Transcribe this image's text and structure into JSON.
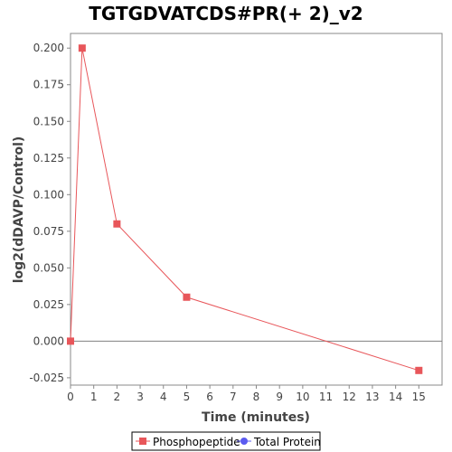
{
  "chart_data": {
    "type": "line",
    "title": "TGTGDVATCDS#PR(+ 2)_v2",
    "xlabel": "Time (minutes)",
    "ylabel": "log2(dDAVP/Control)",
    "xlim": [
      0,
      16
    ],
    "ylim": [
      -0.03,
      0.21
    ],
    "xticks": [
      0,
      1,
      2,
      3,
      4,
      5,
      6,
      7,
      8,
      9,
      10,
      11,
      12,
      13,
      14,
      15
    ],
    "yticks": [
      -0.025,
      0,
      0.025,
      0.05,
      0.075,
      0.1,
      0.125,
      0.15,
      0.175,
      0.2
    ],
    "ytick_labels": [
      "-0.025",
      "0.000",
      "0.025",
      "0.050",
      "0.075",
      "0.100",
      "0.125",
      "0.150",
      "0.175",
      "0.200"
    ],
    "zero_line": true,
    "grid": false,
    "legend_position": "bottom",
    "series": [
      {
        "name": "Phosphopeptide",
        "color": "#e8565a",
        "marker": "square",
        "x": [
          0,
          0.5,
          2,
          5,
          15
        ],
        "y": [
          0.0,
          0.2,
          0.08,
          0.03,
          -0.02
        ]
      },
      {
        "name": "Total Protein",
        "color": "#5b5bf0",
        "marker": "circle",
        "x": [],
        "y": []
      }
    ]
  }
}
